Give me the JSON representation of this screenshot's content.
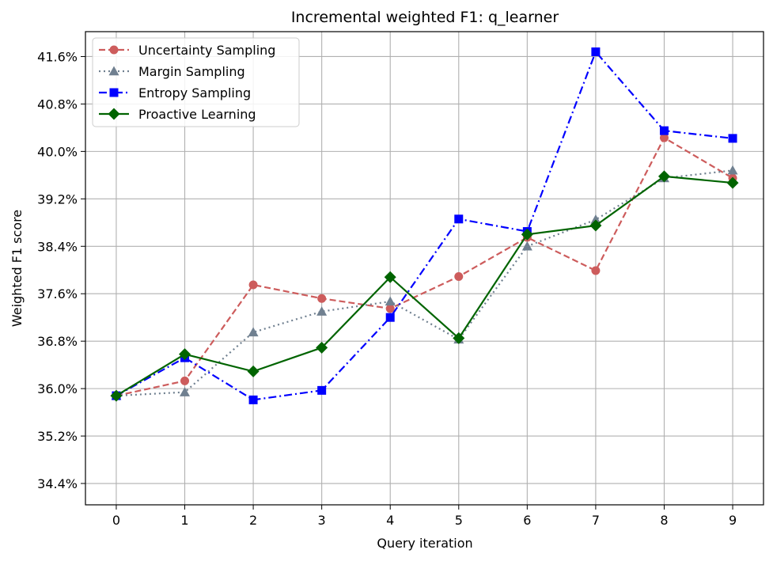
{
  "chart_data": {
    "type": "line",
    "title": "Incremental weighted F1: q_learner",
    "xlabel": "Query iteration",
    "ylabel": "Weighted F1 score",
    "x": [
      0,
      1,
      2,
      3,
      4,
      5,
      6,
      7,
      8,
      9
    ],
    "xticks": [
      "0",
      "1",
      "2",
      "3",
      "4",
      "5",
      "6",
      "7",
      "8",
      "9"
    ],
    "yticks": [
      "34.4%",
      "35.2%",
      "36.0%",
      "36.8%",
      "37.6%",
      "38.4%",
      "39.2%",
      "40.0%",
      "40.8%",
      "41.6%"
    ],
    "ytick_values": [
      34.4,
      35.2,
      36.0,
      36.8,
      37.6,
      38.4,
      39.2,
      40.0,
      40.8,
      41.6
    ],
    "xlim": [
      -0.45,
      9.45
    ],
    "ylim": [
      34.04,
      42.02
    ],
    "grid": true,
    "legend_position": "top-left",
    "series": [
      {
        "name": "Uncertainty Sampling",
        "color": "#cd5c5c",
        "linestyle": "dashed",
        "marker": "circle",
        "values": [
          35.88,
          36.13,
          37.75,
          37.52,
          37.35,
          37.89,
          38.55,
          37.99,
          40.23,
          39.55
        ]
      },
      {
        "name": "Margin Sampling",
        "color": "#708090",
        "linestyle": "dotted",
        "marker": "triangle",
        "values": [
          35.88,
          35.94,
          36.95,
          37.3,
          37.47,
          36.83,
          38.4,
          38.85,
          39.55,
          39.68
        ]
      },
      {
        "name": "Entropy Sampling",
        "color": "#0000ff",
        "linestyle": "dashdot",
        "marker": "square",
        "values": [
          35.88,
          36.52,
          35.81,
          35.97,
          37.2,
          38.86,
          38.65,
          41.68,
          40.35,
          40.22
        ]
      },
      {
        "name": "Proactive Learning",
        "color": "#006400",
        "linestyle": "solid",
        "marker": "diamond",
        "values": [
          35.88,
          36.58,
          36.29,
          36.69,
          37.88,
          36.85,
          38.6,
          38.75,
          39.58,
          39.47
        ]
      }
    ]
  }
}
